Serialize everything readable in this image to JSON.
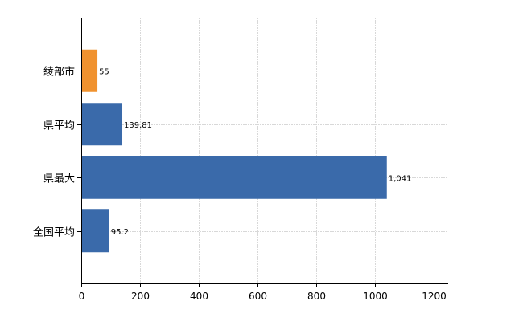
{
  "chart_data": {
    "type": "bar",
    "orientation": "horizontal",
    "categories": [
      "綾部市",
      "県平均",
      "県最大",
      "全国平均"
    ],
    "values": [
      55,
      139.81,
      1041,
      95.2
    ],
    "value_labels": [
      "55",
      "139.81",
      "1,041",
      "95.2"
    ],
    "bar_colors": [
      "#f0922f",
      "#3a6aaa",
      "#3a6aaa",
      "#3a6aaa"
    ],
    "title": "",
    "xlabel": "",
    "ylabel": "",
    "xlim": [
      0,
      1250
    ],
    "xticks": [
      0,
      200,
      400,
      600,
      800,
      1000,
      1200
    ],
    "xtick_labels": [
      "0",
      "200",
      "400",
      "600",
      "800",
      "1000",
      "1200"
    ],
    "grid": true
  },
  "colors": {
    "highlight": "#f0922f",
    "default_bar": "#3a6aaa"
  }
}
